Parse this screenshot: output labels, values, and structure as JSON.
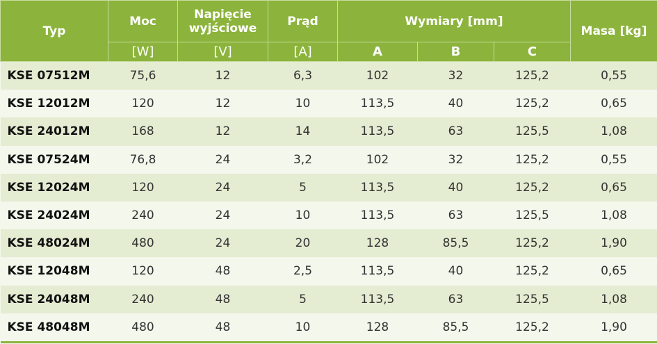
{
  "table": {
    "header": [
      "Typ",
      "Moc",
      "Napięcie wyjściowe",
      "Prąd",
      "Wymiary [mm]",
      "Masa [kg]"
    ],
    "units": [
      "[W]",
      "[V]",
      "[A]",
      "A",
      "B",
      "C"
    ],
    "rows": [
      [
        "KSE 07512M",
        "75,6",
        "12",
        "6,3",
        "102",
        "32",
        "125,2",
        "0,55"
      ],
      [
        "KSE 12012M",
        "120",
        "12",
        "10",
        "113,5",
        "40",
        "125,2",
        "0,65"
      ],
      [
        "KSE 24012M",
        "168",
        "12",
        "14",
        "113,5",
        "63",
        "125,5",
        "1,08"
      ],
      [
        "KSE 07524M",
        "76,8",
        "24",
        "3,2",
        "102",
        "32",
        "125,2",
        "0,55"
      ],
      [
        "KSE 12024M",
        "120",
        "24",
        "5",
        "113,5",
        "40",
        "125,2",
        "0,65"
      ],
      [
        "KSE 24024M",
        "240",
        "24",
        "10",
        "113,5",
        "63",
        "125,5",
        "1,08"
      ],
      [
        "KSE 48024M",
        "480",
        "24",
        "20",
        "128",
        "85,5",
        "125,2",
        "1,90"
      ],
      [
        "KSE 12048M",
        "120",
        "48",
        "2,5",
        "113,5",
        "40",
        "125,2",
        "0,65"
      ],
      [
        "KSE 24048M",
        "240",
        "48",
        "5",
        "113,5",
        "63",
        "125,5",
        "1,08"
      ],
      [
        "KSE 48048M",
        "480",
        "48",
        "10",
        "128",
        "85,5",
        "125,2",
        "1,90"
      ]
    ]
  }
}
